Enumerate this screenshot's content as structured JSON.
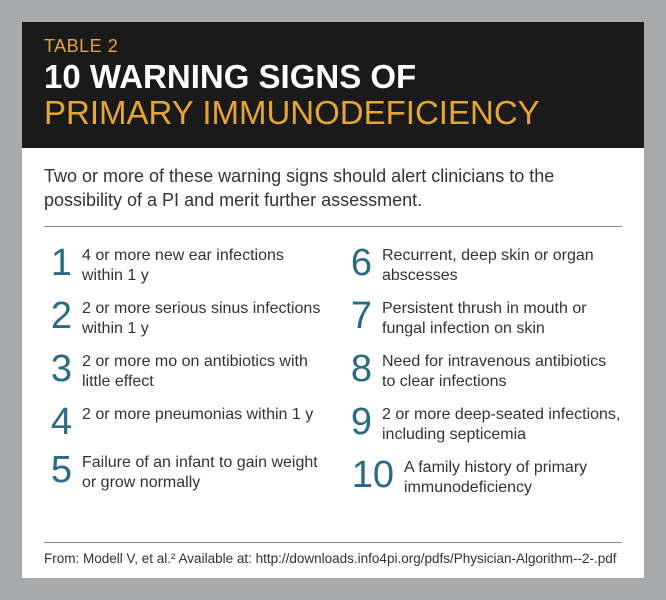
{
  "header": {
    "table_label": "TABLE 2",
    "title_line1": "10 WARNING SIGNS OF",
    "title_line2": "PRIMARY IMMUNODEFICIENCY"
  },
  "subtitle": "Two or more of these warning signs should alert clinicians to the possibility of a PI and merit further assessment.",
  "colors": {
    "page_bg": "#a8a9ab",
    "card_bg": "#ffffff",
    "header_bg": "#1a1a1a",
    "accent": "#e5a634",
    "title_white": "#ffffff",
    "number": "#2a6b84",
    "body_text": "#333333"
  },
  "signs": [
    {
      "n": "1",
      "text": "4 or more new ear infections within 1 y"
    },
    {
      "n": "2",
      "text": "2 or more serious sinus infections within 1 y"
    },
    {
      "n": "3",
      "text": "2 or more mo on antibiotics with little effect"
    },
    {
      "n": "4",
      "text": "2 or more pneumonias within 1 y"
    },
    {
      "n": "5",
      "text": "Failure of an infant to gain weight or grow normally"
    },
    {
      "n": "6",
      "text": "Recurrent, deep skin or organ abscesses"
    },
    {
      "n": "7",
      "text": "Persistent thrush in mouth or fungal infection on skin"
    },
    {
      "n": "8",
      "text": "Need for intravenous antibiotics to clear infections"
    },
    {
      "n": "9",
      "text": "2 or more deep-seated infections, including septicemia"
    },
    {
      "n": "10",
      "text": "A family history of primary immunodeficiency"
    }
  ],
  "source": "From: Modell V, et al.² Available at: http://downloads.info4pi.org/pdfs/Physician-Algorithm--2-.pdf"
}
